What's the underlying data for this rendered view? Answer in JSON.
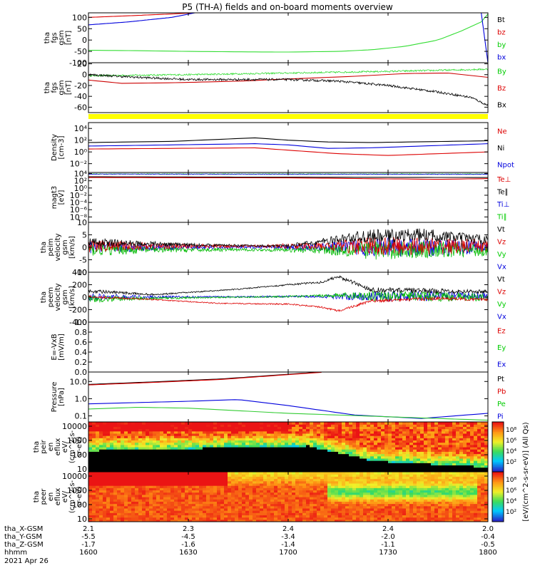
{
  "title": "P5 (TH-A) fields and on-board moments overview",
  "chart_data": [
    {
      "id": "fgs_gse",
      "type": "line",
      "ylabel": [
        "tha",
        "fgs",
        "gsm",
        "[nT]"
      ],
      "yticks": [
        [
          "100",
          100
        ],
        [
          "50",
          50
        ],
        [
          "0",
          0
        ],
        [
          "-50",
          -50
        ],
        [
          "-100",
          -100
        ]
      ],
      "ylim": [
        -100,
        120
      ],
      "legend": [
        {
          "name": "Bt",
          "color": "#000000"
        },
        {
          "name": "bz",
          "color": "#dd0000"
        },
        {
          "name": "by",
          "color": "#00cc00"
        },
        {
          "name": "bx",
          "color": "#0000dd"
        }
      ],
      "series": [
        {
          "name": "by",
          "color": "#33dd33",
          "x": [
            1600,
            1615,
            1630,
            1645,
            1700,
            1715,
            1725,
            1735,
            1745,
            1752,
            1758,
            1800
          ],
          "y": [
            -45,
            -47,
            -50,
            -52,
            -53,
            -50,
            -43,
            -28,
            0,
            40,
            80,
            115
          ]
        },
        {
          "name": "bz",
          "color": "#dd0000",
          "x": [
            1600,
            1612,
            1625,
            1632
          ],
          "y": [
            100,
            107,
            115,
            120
          ]
        },
        {
          "name": "bx",
          "color": "#0000dd",
          "x": [
            1600,
            1612,
            1625,
            1632
          ],
          "y": [
            67,
            80,
            100,
            120
          ]
        },
        {
          "name": "bx",
          "color": "#0000dd",
          "x": [
            1758,
            1800
          ],
          "y": [
            120,
            -100
          ]
        }
      ]
    },
    {
      "id": "fgs_gsm",
      "type": "line",
      "ylabel": [
        "tha",
        "fgs",
        "gsm",
        "[nT]"
      ],
      "yticks": [
        [
          "20",
          20
        ],
        [
          "0",
          0
        ],
        [
          "-20",
          -20
        ],
        [
          "-40",
          -40
        ],
        [
          "-60",
          -60
        ]
      ],
      "ylim": [
        -70,
        22
      ],
      "legend": [
        {
          "name": "By",
          "color": "#00cc00"
        },
        {
          "name": "Bz",
          "color": "#dd0000"
        },
        {
          "name": "Bx",
          "color": "#000000"
        }
      ],
      "series": [
        {
          "name": "By",
          "color": "#33dd33",
          "noise": 1.5,
          "x": [
            1600,
            1630,
            1700,
            1730,
            1800
          ],
          "y": [
            -2,
            0,
            3,
            6,
            10
          ]
        },
        {
          "name": "Bz",
          "color": "#cc0000",
          "x": [
            1600,
            1610,
            1625,
            1645,
            1700,
            1720,
            1735,
            1748,
            1800
          ],
          "y": [
            -10,
            -16,
            -15,
            -12,
            -8,
            -3,
            2,
            3,
            -5
          ]
        },
        {
          "name": "Bx",
          "color": "#000000",
          "noise": 2,
          "x": [
            1600,
            1615,
            1630,
            1645,
            1700,
            1715,
            1730,
            1745,
            1755,
            1800
          ],
          "y": [
            0,
            -5,
            -9,
            -9,
            -9,
            -12,
            -20,
            -32,
            -42,
            -57
          ]
        }
      ]
    },
    {
      "id": "density",
      "type": "line",
      "log": true,
      "ylabel": [
        "Density",
        "[cm-3]"
      ],
      "yticks": [
        [
          "10⁴",
          4
        ],
        [
          "10²",
          2
        ],
        [
          "10⁰",
          0
        ],
        [
          "10⁻²",
          -2
        ]
      ],
      "ylim": [
        -3.5,
        5
      ],
      "legend": [
        {
          "name": "Ne",
          "color": "#dd0000"
        },
        {
          "name": "Ni",
          "color": "#000000"
        },
        {
          "name": "Npot",
          "color": "#0000dd"
        }
      ],
      "series": [
        {
          "name": "Ni",
          "color": "#000000",
          "x": [
            1600,
            1625,
            1650,
            1700,
            1712,
            1725,
            1800
          ],
          "y": [
            1.6,
            1.8,
            2.4,
            2.0,
            1.7,
            1.6,
            1.9
          ]
        },
        {
          "name": "Npot",
          "color": "#0000dd",
          "x": [
            1600,
            1625,
            1650,
            1700,
            1712,
            1725,
            1800
          ],
          "y": [
            1.0,
            1.2,
            1.4,
            1.2,
            0.6,
            0.7,
            1.4
          ]
        },
        {
          "name": "Ne",
          "color": "#dd0000",
          "x": [
            1600,
            1625,
            1650,
            1700,
            1715,
            1730,
            1745,
            1800
          ],
          "y": [
            0.5,
            0.6,
            0.7,
            0.3,
            -0.3,
            -0.6,
            -0.3,
            0.0
          ]
        }
      ]
    },
    {
      "id": "temperature",
      "type": "line",
      "log": true,
      "ylabel": [
        "magt3",
        "[eV]"
      ],
      "yticks": [
        [
          "10⁴",
          4
        ],
        [
          "10²",
          2
        ],
        [
          "10⁰",
          0
        ],
        [
          "10⁻²",
          -2
        ],
        [
          "10⁻⁴",
          -4
        ],
        [
          "10⁻⁶",
          -6
        ],
        [
          "10⁻⁸",
          -8
        ]
      ],
      "ylim": [
        -9.5,
        4.3
      ],
      "legend": [
        {
          "name": "Te⊥",
          "color": "#dd0000"
        },
        {
          "name": "Te∥",
          "color": "#000000"
        },
        {
          "name": "Ti⊥",
          "color": "#0000dd"
        },
        {
          "name": "Ti∥",
          "color": "#00cc00"
        }
      ],
      "series": [
        {
          "name": "Ti∥",
          "color": "#33dd33",
          "noise": 0.08,
          "x": [
            1600,
            1800
          ],
          "y": [
            3.9,
            3.9
          ]
        },
        {
          "name": "Ti⊥",
          "color": "#0000dd",
          "noise": 0.08,
          "x": [
            1600,
            1800
          ],
          "y": [
            3.85,
            3.8
          ]
        },
        {
          "name": "Te∥",
          "color": "#000000",
          "x": [
            1600,
            1800
          ],
          "y": [
            3.1,
            2.9
          ]
        },
        {
          "name": "Te⊥",
          "color": "#dd0000",
          "x": [
            1600,
            1700,
            1745,
            1800
          ],
          "y": [
            2.9,
            2.8,
            2.4,
            2.6
          ]
        }
      ]
    },
    {
      "id": "peim_velocity",
      "type": "line",
      "ylabel": [
        "tha",
        "peim",
        "velocity",
        "gsm",
        "[km/s]"
      ],
      "yticks": [
        [
          "10",
          10
        ],
        [
          "5",
          5
        ],
        [
          "0",
          0
        ],
        [
          "-5",
          -5
        ],
        [
          "-10",
          -10
        ]
      ],
      "ylim": [
        -10,
        10
      ],
      "legend": [
        {
          "name": "Vt",
          "color": "#000000"
        },
        {
          "name": "Vz",
          "color": "#dd0000"
        },
        {
          "name": "Vy",
          "color": "#00cc00"
        },
        {
          "name": "Vx",
          "color": "#0000dd"
        }
      ],
      "series": [
        {
          "name": "Vx",
          "color": "#0000dd",
          "noise": 2.5,
          "noiseShape": [
            1,
            0.6,
            0.3,
            0.2,
            0.6,
            1.6,
            1.4,
            1.0
          ],
          "x": [
            1600,
            1800
          ],
          "y": [
            0,
            0
          ]
        },
        {
          "name": "Vy",
          "color": "#00bb00",
          "noise": 2.5,
          "noiseShape": [
            1,
            0.6,
            0.3,
            0.2,
            0.6,
            1.6,
            1.4,
            1.0
          ],
          "x": [
            1600,
            1800
          ],
          "y": [
            -1,
            -1
          ]
        },
        {
          "name": "Vz",
          "color": "#dd0000",
          "noise": 2.5,
          "noiseShape": [
            1,
            0.6,
            0.3,
            0.2,
            0.6,
            1.6,
            1.4,
            1.0
          ],
          "x": [
            1600,
            1800
          ],
          "y": [
            0.5,
            0.5
          ]
        },
        {
          "name": "Vt",
          "color": "#000000",
          "noise": 1.8,
          "noiseShape": [
            1,
            0.6,
            0.3,
            0.2,
            0.6,
            1.6,
            1.4,
            1.0
          ],
          "x": [
            1600,
            1630,
            1700,
            1720,
            1740,
            1800
          ],
          "y": [
            2,
            1,
            0.5,
            4,
            5,
            3
          ]
        }
      ]
    },
    {
      "id": "peem_velocity",
      "type": "line",
      "ylabel": [
        "tha",
        "peem",
        "velocity",
        "gsm",
        "[km/s]"
      ],
      "yticks": [
        [
          "400",
          400
        ],
        [
          "200",
          200
        ],
        [
          "0",
          0
        ],
        [
          "-200",
          -200
        ],
        [
          "-400",
          -400
        ]
      ],
      "ylim": [
        -400,
        400
      ],
      "legend": [
        {
          "name": "Vt",
          "color": "#000000"
        },
        {
          "name": "Vz",
          "color": "#dd0000"
        },
        {
          "name": "Vy",
          "color": "#00cc00"
        },
        {
          "name": "Vx",
          "color": "#0000dd"
        }
      ],
      "series": [
        {
          "name": "Vx",
          "color": "#0000dd",
          "noise": 60,
          "noiseShape": [
            1,
            0.4,
            0.2,
            0.2,
            0.3,
            1.4,
            1.3,
            1.0
          ],
          "x": [
            1600,
            1800
          ],
          "y": [
            0,
            20
          ]
        },
        {
          "name": "Vy",
          "color": "#00bb00",
          "noise": 60,
          "noiseShape": [
            1,
            0.4,
            0.2,
            0.2,
            0.3,
            1.4,
            1.3,
            1.0
          ],
          "x": [
            1600,
            1630,
            1700,
            1715,
            1800
          ],
          "y": [
            -30,
            -10,
            10,
            30,
            0
          ]
        },
        {
          "name": "Vz",
          "color": "#dd0000",
          "noise": 20,
          "noiseShape": [
            1,
            0.5,
            0.4,
            0.5,
            0.6,
            1.2,
            1.3,
            1.0
          ],
          "x": [
            1600,
            1620,
            1640,
            1700,
            1710,
            1715,
            1725,
            1745,
            1800
          ],
          "y": [
            10,
            -40,
            -100,
            -110,
            -160,
            -220,
            -60,
            -20,
            -40
          ]
        },
        {
          "name": "Vt",
          "color": "#000000",
          "noise": 30,
          "noiseShape": [
            1,
            0.5,
            0.3,
            0.3,
            0.5,
            1.3,
            1.3,
            1.0
          ],
          "x": [
            1600,
            1620,
            1645,
            1700,
            1710,
            1715,
            1725,
            1745,
            1800
          ],
          "y": [
            100,
            40,
            130,
            200,
            240,
            330,
            120,
            100,
            90
          ]
        }
      ]
    },
    {
      "id": "efield",
      "type": "line",
      "ylabel": [
        "E=-VxB",
        "[mV/m]"
      ],
      "yticks": [
        [
          "1.0",
          1.0
        ],
        [
          "0.8",
          0.8
        ],
        [
          "0.6",
          0.6
        ],
        [
          "0.4",
          0.4
        ],
        [
          "0.2",
          0.2
        ],
        [
          "0.0",
          0.0
        ]
      ],
      "ylim": [
        0,
        1
      ],
      "legend": [
        {
          "name": "Ez",
          "color": "#dd0000"
        },
        {
          "name": "Ey",
          "color": "#00cc00"
        },
        {
          "name": "Ex",
          "color": "#0000dd"
        }
      ],
      "series": []
    },
    {
      "id": "pressure",
      "type": "line",
      "log": true,
      "ylabel": [
        "Pressure",
        "[nPa]"
      ],
      "yticks": [
        [
          "10.0",
          1
        ],
        [
          "1.0",
          0
        ],
        [
          "0.1",
          -1
        ]
      ],
      "ylim": [
        -1.35,
        1.55
      ],
      "legend": [
        {
          "name": "Pt",
          "color": "#000000"
        },
        {
          "name": "Pb",
          "color": "#dd0000"
        },
        {
          "name": "Pe",
          "color": "#00cc00"
        },
        {
          "name": "Pi",
          "color": "#0000dd"
        }
      ],
      "series": [
        {
          "name": "Pt",
          "color": "#000000",
          "x": [
            1600,
            1620,
            1640,
            1700,
            1710
          ],
          "y": [
            0.83,
            0.98,
            1.15,
            1.42,
            1.55
          ]
        },
        {
          "name": "Pb",
          "color": "#dd0000",
          "x": [
            1600,
            1620,
            1640,
            1700,
            1710
          ],
          "y": [
            0.8,
            0.95,
            1.12,
            1.4,
            1.53
          ]
        },
        {
          "name": "Pi",
          "color": "#0000dd",
          "x": [
            1600,
            1630,
            1645,
            1700,
            1720,
            1740,
            1800
          ],
          "y": [
            -0.3,
            -0.15,
            -0.05,
            -0.4,
            -0.95,
            -1.15,
            -0.85
          ]
        },
        {
          "name": "Pe",
          "color": "#33cc33",
          "x": [
            1600,
            1615,
            1630,
            1700,
            1730,
            1800
          ],
          "y": [
            -0.6,
            -0.5,
            -0.55,
            -0.85,
            -1.05,
            -1.25
          ]
        }
      ]
    },
    {
      "id": "peir_spec",
      "type": "heatmap",
      "ylabel": [
        "tha",
        "peir",
        "en",
        "eflux",
        "eV/",
        "(cm^2-s-",
        "sr-eV)"
      ],
      "yticks": [
        [
          "10000",
          4
        ],
        [
          "1000",
          3
        ],
        [
          "100",
          2
        ],
        [
          "10",
          1
        ]
      ],
      "ylim": [
        0.8,
        4.3
      ],
      "kind": "ion"
    },
    {
      "id": "peer_spec",
      "type": "heatmap",
      "ylabel": [
        "tha",
        "peer",
        "en",
        "eflux",
        "eV/",
        "(cm^2-s-",
        "sr-eV)"
      ],
      "yticks": [
        [
          "10000",
          4
        ],
        [
          "1000",
          3
        ],
        [
          "100",
          2
        ],
        [
          "10",
          1
        ]
      ],
      "ylim": [
        0.8,
        4.3
      ],
      "kind": "electron"
    }
  ],
  "colorbar": {
    "label": "[eV/(cm^2-s-sr-eV)] (All Qs)",
    "top_ticks": [
      "10⁸",
      "10⁶",
      "10⁴",
      "10²"
    ],
    "bottom_ticks": [
      "10⁸",
      "10⁶",
      "10⁴",
      "10²"
    ]
  },
  "quality_bar_color": "#ffff00",
  "xaxis": {
    "rows": [
      {
        "label": "tha_X-GSM",
        "values": [
          "2.1",
          "2.3",
          "2.4",
          "2.4",
          "2.0"
        ]
      },
      {
        "label": "tha_Y-GSM",
        "values": [
          "-5.5",
          "-4.5",
          "-3.4",
          "-2.0",
          "-0.4"
        ]
      },
      {
        "label": "tha_Z-GSM",
        "values": [
          "-1.7",
          "-1.6",
          "-1.4",
          "-1.1",
          "-0.5"
        ]
      },
      {
        "label": "hhmm",
        "values": [
          "1600",
          "1630",
          "1700",
          "1730",
          "1800"
        ]
      }
    ],
    "date": "2021 Apr 26",
    "tick_times": [
      1600,
      1630,
      1700,
      1730,
      1800
    ]
  }
}
